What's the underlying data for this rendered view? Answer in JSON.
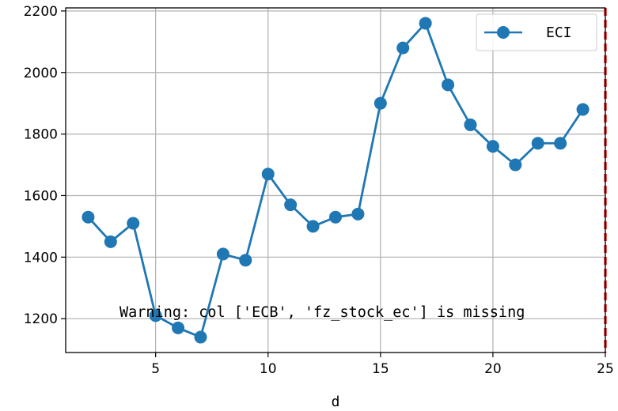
{
  "chart_data": {
    "type": "line",
    "title": "",
    "xlabel": "d",
    "ylabel": "",
    "xlim": [
      1,
      25
    ],
    "ylim": [
      1090,
      2210
    ],
    "xticks": [
      5,
      10,
      15,
      20,
      25
    ],
    "yticks": [
      1200,
      1400,
      1600,
      1800,
      2000,
      2200
    ],
    "grid": true,
    "legend_position": "top-right",
    "vline": {
      "x": 25,
      "color": "#d62728",
      "style": "dashed"
    },
    "series": [
      {
        "name": "ECI",
        "color": "#1f77b4",
        "marker": "circle",
        "x": [
          2,
          3,
          4,
          5,
          6,
          7,
          8,
          9,
          10,
          11,
          12,
          13,
          14,
          15,
          16,
          17,
          18,
          19,
          20,
          21,
          22,
          23,
          24
        ],
        "values": [
          1530,
          1450,
          1510,
          1210,
          1170,
          1140,
          1410,
          1390,
          1670,
          1570,
          1500,
          1530,
          1540,
          1900,
          2080,
          2160,
          1960,
          1830,
          1760,
          1700,
          1770,
          1770,
          1880
        ]
      }
    ],
    "annotation": "Warning: col ['ECB', 'fz_stock_ec'] is missing"
  }
}
